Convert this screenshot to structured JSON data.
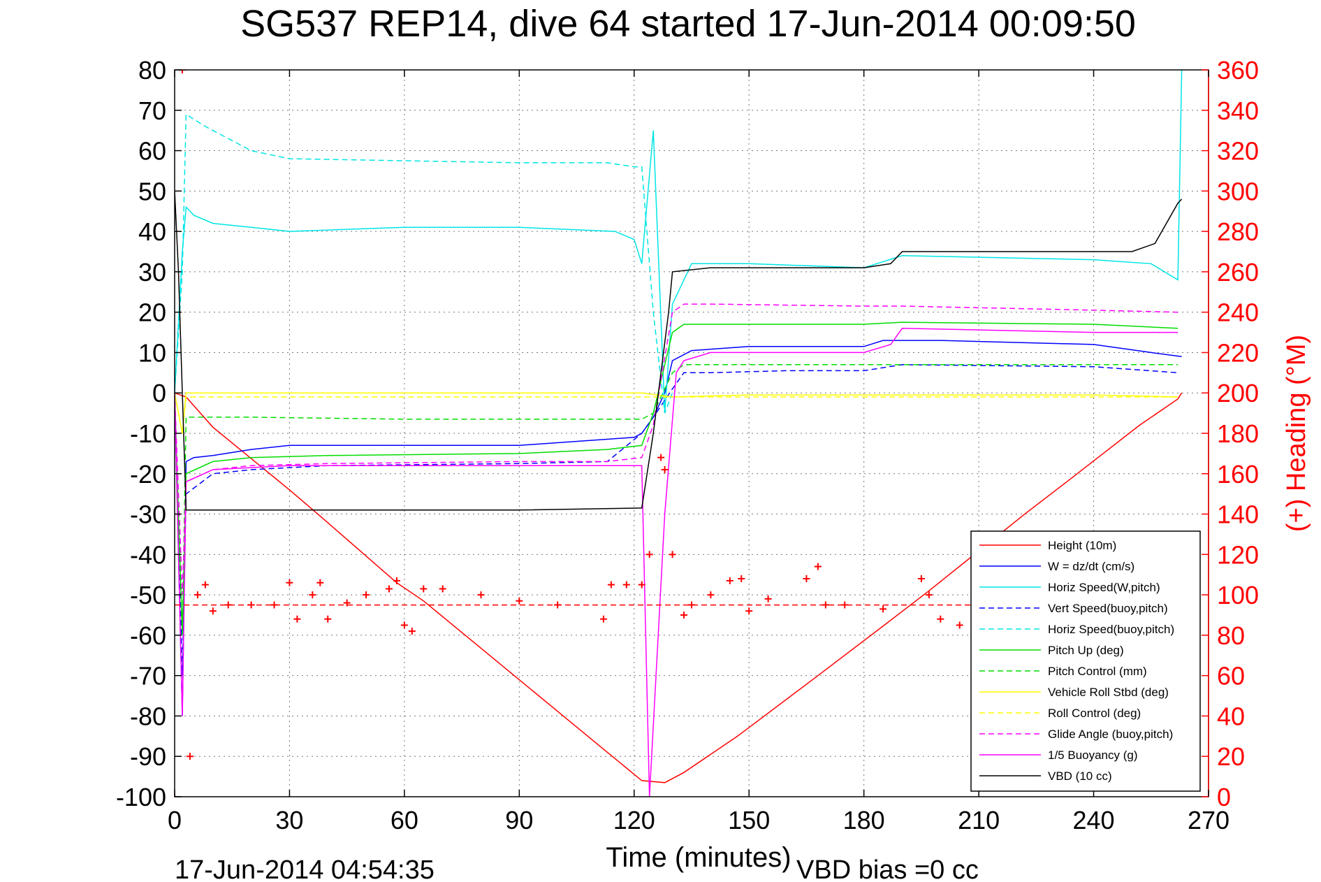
{
  "chart_data": {
    "type": "line",
    "title": "SG537 REP14, dive 64 started 17-Jun-2014 00:09:50",
    "xlabel": "Time (minutes)",
    "ylabel_right": "(+) Heading (°M)",
    "footer_left": "17-Jun-2014 04:54:35",
    "footer_right": "VBD bias =0 cc",
    "xlim": [
      0,
      270
    ],
    "ylim": [
      -100,
      80
    ],
    "y2lim": [
      0,
      360
    ],
    "grid": true,
    "legend_position": "bottom-right",
    "x_ticks": [
      "0",
      "30",
      "60",
      "90",
      "120",
      "150",
      "180",
      "210",
      "240",
      "270"
    ],
    "y_ticks": [
      "80",
      "70",
      "60",
      "50",
      "40",
      "30",
      "20",
      "10",
      "0",
      "-10",
      "-20",
      "-30",
      "-40",
      "-50",
      "-60",
      "-70",
      "-80",
      "-90",
      "-100"
    ],
    "y2_ticks": [
      "360",
      "340",
      "320",
      "300",
      "280",
      "260",
      "240",
      "220",
      "200",
      "180",
      "160",
      "140",
      "120",
      "100",
      "80",
      "60",
      "40",
      "20",
      "0"
    ],
    "series": [
      {
        "name": "Height (10m)",
        "color": "#ff0000",
        "style": "solid",
        "axis": "left",
        "x": [
          0,
          3,
          10,
          30,
          38,
          58,
          65,
          113,
          122,
          128,
          133,
          147,
          168,
          186,
          197,
          222,
          233,
          252,
          262,
          263
        ],
        "y": [
          0,
          -1,
          -8.5,
          -24,
          -30.5,
          -47,
          -51.5,
          -89,
          -96,
          -96.5,
          -94,
          -85,
          -70,
          -57,
          -49,
          -30,
          -22,
          -8,
          -1.5,
          0
        ]
      },
      {
        "name": "W = dz/dt (cm/s)",
        "color": "#0000ff",
        "style": "solid",
        "axis": "left",
        "x": [
          0,
          1,
          2,
          3,
          5,
          10,
          20,
          30,
          60,
          90,
          120,
          122,
          125,
          128,
          130,
          135,
          150,
          180,
          185,
          200,
          240,
          255,
          263
        ],
        "y": [
          0,
          -40,
          -80,
          -17,
          -16,
          -15.5,
          -14,
          -13,
          -13,
          -13,
          -11,
          -10,
          -6,
          0,
          8,
          10.5,
          11.5,
          11.5,
          13,
          13,
          12,
          10,
          9
        ]
      },
      {
        "name": "Horiz Speed(W,pitch)",
        "color": "#00e5e5",
        "style": "solid",
        "axis": "left",
        "x": [
          0,
          2,
          3,
          5,
          10,
          20,
          30,
          60,
          90,
          115,
          120,
          122,
          125,
          128,
          130,
          135,
          150,
          180,
          190,
          240,
          255,
          262,
          263
        ],
        "y": [
          0,
          35,
          46,
          44,
          42,
          41,
          40,
          41,
          41,
          40,
          38,
          32,
          65,
          -5,
          22,
          32,
          32,
          31,
          34,
          33,
          32,
          28,
          80
        ]
      },
      {
        "name": "Vert Speed(buoy,pitch)",
        "color": "#0000ff",
        "style": "dashed",
        "axis": "left",
        "x": [
          0,
          2,
          3,
          10,
          20,
          40,
          90,
          113,
          122,
          125,
          130,
          133,
          140,
          160,
          180,
          190,
          240,
          262
        ],
        "y": [
          0,
          -70,
          -25,
          -20,
          -19,
          -18,
          -17.5,
          -17,
          -10,
          -6,
          1,
          5,
          5,
          5.5,
          5.5,
          7,
          6.5,
          5
        ]
      },
      {
        "name": "Horiz Speed(buoy,pitch)",
        "color": "#00e5e5",
        "style": "dashed",
        "axis": "left",
        "x": [
          0,
          2,
          3,
          8,
          20,
          30,
          60,
          90,
          113,
          120,
          122,
          125,
          128,
          130
        ],
        "y": [
          0,
          30,
          69,
          66,
          60,
          58,
          57.5,
          57,
          57,
          56,
          56,
          20,
          -5,
          0
        ]
      },
      {
        "name": "Pitch Up (deg)",
        "color": "#00dd00",
        "style": "solid",
        "axis": "left",
        "x": [
          0,
          2,
          3,
          10,
          20,
          40,
          90,
          113,
          122,
          125,
          130,
          133,
          140,
          180,
          190,
          240,
          262
        ],
        "y": [
          0,
          -60,
          -20,
          -17,
          -16,
          -15.5,
          -15,
          -14,
          -13,
          -5,
          15,
          17,
          17,
          17,
          17.5,
          17,
          16
        ]
      },
      {
        "name": "Pitch Control (mm)",
        "color": "#00dd00",
        "style": "dashed",
        "axis": "left",
        "x": [
          0,
          2,
          3,
          10,
          20,
          60,
          90,
          122,
          125,
          130,
          133,
          140,
          180,
          190,
          240,
          262
        ],
        "y": [
          0,
          -60,
          -6,
          -6,
          -6,
          -6.5,
          -6.5,
          -6.5,
          -5,
          5,
          7,
          7,
          7,
          7,
          7,
          7
        ]
      },
      {
        "name": "Vehicle Roll Stbd (deg)",
        "color": "#ffff00",
        "style": "solid",
        "axis": "left",
        "x": [
          0,
          2,
          3,
          30,
          60,
          90,
          122,
          130,
          150,
          180,
          210,
          240,
          262
        ],
        "y": [
          0,
          -10,
          0,
          0,
          0,
          0,
          0,
          -1,
          -0.5,
          -0.5,
          -0.5,
          -0.5,
          -1
        ]
      },
      {
        "name": "Roll Control (deg)",
        "color": "#ffff00",
        "style": "dashed",
        "axis": "left",
        "x": [
          0,
          2,
          3,
          30,
          60,
          90,
          122,
          130,
          150,
          180,
          210,
          240,
          262
        ],
        "y": [
          0,
          -10,
          -1,
          -1,
          -1,
          -1,
          -1,
          -1,
          -1,
          -1,
          -1,
          -1,
          -1
        ]
      },
      {
        "name": "Glide Angle (buoy,pitch)",
        "color": "#ff00ff",
        "style": "dashed",
        "axis": "left",
        "x": [
          0,
          2,
          3,
          10,
          20,
          40,
          90,
          113,
          122,
          125,
          130,
          133,
          140,
          180,
          190,
          240,
          262
        ],
        "y": [
          0,
          -50,
          -22,
          -19,
          -18,
          -17.5,
          -17,
          -17,
          -16,
          -8,
          20,
          22,
          22,
          21.5,
          21.5,
          20.5,
          20
        ]
      },
      {
        "name": "1/5 Buoyancy (g)",
        "color": "#ff00ff",
        "style": "solid",
        "axis": "left",
        "x": [
          0,
          2,
          3,
          10,
          30,
          60,
          90,
          122,
          124,
          128,
          131,
          133,
          140,
          180,
          187,
          190,
          240,
          262
        ],
        "y": [
          0,
          -80,
          -22,
          -19,
          -18,
          -18,
          -18,
          -18,
          -100,
          -30,
          5,
          8,
          10,
          10,
          12,
          16,
          15,
          15
        ]
      },
      {
        "name": "VBD (10 cc)",
        "color": "#000000",
        "style": "solid",
        "axis": "left",
        "x": [
          0,
          1,
          2,
          3,
          30,
          60,
          90,
          122,
          125,
          129,
          130,
          140,
          160,
          180,
          187,
          190,
          200,
          250,
          256,
          262,
          263
        ],
        "y": [
          50,
          30,
          0,
          -29,
          -29,
          -29,
          -29,
          -28.5,
          -10,
          20,
          30,
          31,
          31,
          31,
          32,
          35,
          35,
          35,
          37,
          47,
          48
        ]
      },
      {
        "name": "",
        "color": "#ff0000",
        "style": "markers",
        "axis": "right",
        "x": [
          0,
          2,
          4,
          6,
          8,
          10,
          14,
          20,
          26,
          30,
          32,
          36,
          38,
          40,
          45,
          50,
          56,
          58,
          60,
          62,
          65,
          70,
          80,
          90,
          100,
          112,
          114,
          118,
          122,
          124,
          127,
          128,
          130,
          133,
          135,
          140,
          145,
          148,
          150,
          155,
          165,
          168,
          170,
          175,
          185,
          195,
          197,
          200,
          205,
          210
        ],
        "y": [
          0,
          360,
          20,
          100,
          105,
          92,
          95,
          95,
          95,
          106,
          88,
          100,
          106,
          88,
          96,
          100,
          103,
          107,
          85,
          82,
          103,
          103,
          100,
          97,
          95,
          88,
          105,
          105,
          105,
          120,
          168,
          162,
          120,
          90,
          95,
          100,
          107,
          108,
          92,
          98,
          108,
          114,
          95,
          95,
          93,
          108,
          100,
          88,
          85,
          80
        ]
      },
      {
        "name": "",
        "color": "#ff0000",
        "style": "dashed",
        "axis": "right",
        "x": [
          0,
          263
        ],
        "y": [
          95,
          95
        ]
      }
    ]
  }
}
